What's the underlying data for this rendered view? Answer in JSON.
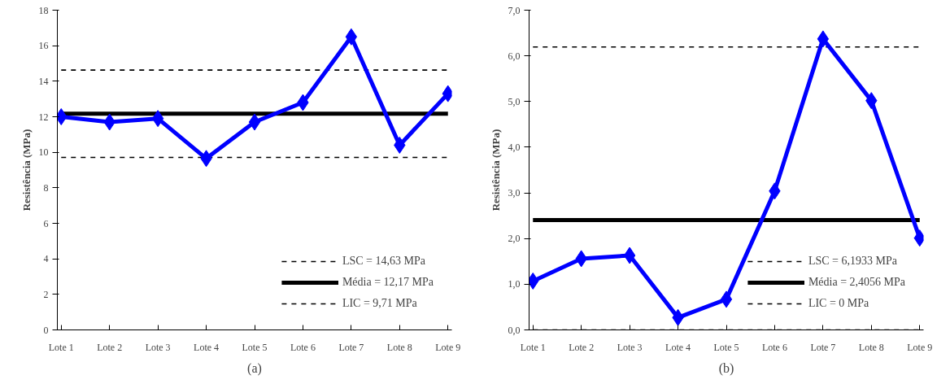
{
  "chart_data": [
    {
      "type": "line",
      "ylabel": "Resistência (MPa)",
      "categories": [
        "Lote 1",
        "Lote 2",
        "Lote 3",
        "Lote 4",
        "Lote 5",
        "Lote 6",
        "Lote 7",
        "Lote 8",
        "Lote 9"
      ],
      "series": [
        {
          "color": "#0000ff",
          "values": [
            12.0,
            11.7,
            11.9,
            9.65,
            11.7,
            12.8,
            16.5,
            10.4,
            13.3
          ]
        }
      ],
      "ylim": [
        0,
        18
      ],
      "yticks": [
        0,
        2,
        4,
        6,
        8,
        10,
        12,
        14,
        16,
        18
      ],
      "marker": "diamond",
      "grid": false,
      "legend": "bottom right",
      "ref_lines": [
        {
          "axis": "y",
          "value": 14.63,
          "label": "LSC = 14,63 MPa",
          "color": "#000000",
          "line_style": "dashed"
        },
        {
          "axis": "y",
          "value": 12.17,
          "label": "Média = 12,17 MPa",
          "color": "#000000",
          "line_style": "solid"
        },
        {
          "axis": "y",
          "value": 9.71,
          "label": "LIC = 9,71 MPa",
          "color": "#000000",
          "line_style": "dashed"
        }
      ],
      "annotations": [
        "(a)"
      ]
    },
    {
      "type": "line",
      "ylabel": "Resistência (MPa)",
      "categories": [
        "Lote 1",
        "Lote 2",
        "Lote 3",
        "Lote 4",
        "Lote 5",
        "Lote 6",
        "Lote 7",
        "Lote 8",
        "Lote 9"
      ],
      "series": [
        {
          "color": "#0000ff",
          "values": [
            1.07,
            1.56,
            1.63,
            0.27,
            0.67,
            3.04,
            6.37,
            5.02,
            2.01
          ]
        }
      ],
      "ylim": [
        0,
        7
      ],
      "yticks": [
        {
          "value": 0,
          "label": "0,0"
        },
        {
          "value": 1,
          "label": "1,0"
        },
        {
          "value": 2,
          "label": "2,0"
        },
        {
          "value": 3,
          "label": "3,0"
        },
        {
          "value": 4,
          "label": "4,0"
        },
        {
          "value": 5,
          "label": "5,0"
        },
        {
          "value": 6,
          "label": "6,0"
        },
        {
          "value": 7,
          "label": "7,0"
        }
      ],
      "marker": "diamond",
      "grid": false,
      "legend": "bottom right",
      "ref_lines": [
        {
          "axis": "y",
          "value": 6.1933,
          "label": "LSC = 6,1933 MPa",
          "color": "#000000",
          "line_style": "dashed"
        },
        {
          "axis": "y",
          "value": 2.4056,
          "label": "Média = 2,4056 MPa",
          "color": "#000000",
          "line_style": "solid"
        },
        {
          "axis": "y",
          "value": 0,
          "label": "LIC = 0 MPa",
          "color": "#000000",
          "line_style": "dashed"
        }
      ],
      "annotations": [
        "(b)"
      ]
    }
  ]
}
